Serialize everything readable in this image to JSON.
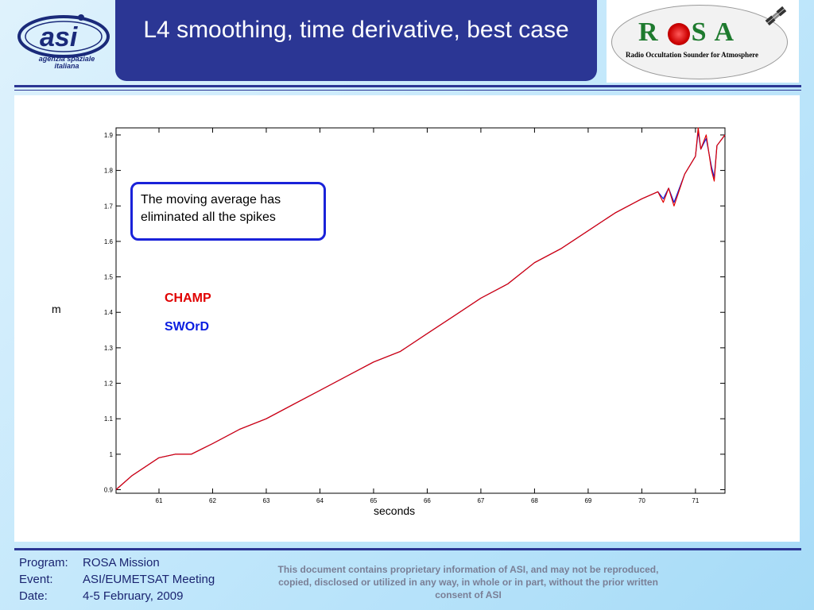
{
  "header": {
    "title": "L4 smoothing, time derivative, best case",
    "asi_logo_text": "agenzia spaziale italiana",
    "rosa_logo_text": "ROSA",
    "rosa_subtitle": "Radio Occultation Sounder for Atmosphere"
  },
  "annotation": {
    "text": "The moving average has eliminated all the spikes"
  },
  "chart_data": {
    "type": "line",
    "title": "",
    "xlabel": "seconds",
    "ylabel": "m",
    "xlim": [
      60.2,
      71.55
    ],
    "ylim": [
      0.89,
      1.92
    ],
    "x_ticks": [
      61,
      62,
      63,
      64,
      65,
      66,
      67,
      68,
      69,
      70,
      71
    ],
    "y_ticks": [
      0.9,
      1,
      1.1,
      1.2,
      1.3,
      1.4,
      1.5,
      1.6,
      1.7,
      1.8,
      1.9
    ],
    "y_tick_labels": [
      "0.9",
      "1",
      "1.1",
      "1.2",
      "1.3",
      "1.4",
      "1.5",
      "1.6",
      "1.7",
      "1.8",
      "1.9"
    ],
    "grid": false,
    "series": [
      {
        "name": "CHAMP",
        "color": "#e00000",
        "x": [
          60.2,
          60.5,
          61.0,
          61.3,
          61.6,
          62.0,
          62.5,
          63.0,
          63.5,
          64.0,
          64.5,
          65.0,
          65.5,
          66.0,
          66.5,
          67.0,
          67.5,
          68.0,
          68.5,
          69.0,
          69.5,
          70.0,
          70.3,
          70.4,
          70.5,
          70.6,
          70.8,
          71.0,
          71.05,
          71.1,
          71.2,
          71.3,
          71.35,
          71.4,
          71.55
        ],
        "y": [
          0.9,
          0.94,
          0.99,
          1.0,
          1.0,
          1.03,
          1.07,
          1.1,
          1.14,
          1.18,
          1.22,
          1.26,
          1.29,
          1.34,
          1.39,
          1.44,
          1.48,
          1.54,
          1.58,
          1.63,
          1.68,
          1.72,
          1.74,
          1.71,
          1.75,
          1.7,
          1.79,
          1.84,
          1.92,
          1.86,
          1.9,
          1.8,
          1.77,
          1.87,
          1.9
        ]
      },
      {
        "name": "SWOrD",
        "color": "#0a1de0",
        "x": [
          60.2,
          60.5,
          61.0,
          61.3,
          61.6,
          62.0,
          62.5,
          63.0,
          63.5,
          64.0,
          64.5,
          65.0,
          65.5,
          66.0,
          66.5,
          67.0,
          67.5,
          68.0,
          68.5,
          69.0,
          69.5,
          70.0,
          70.3,
          70.4,
          70.5,
          70.6,
          70.8,
          71.0,
          71.05,
          71.1,
          71.2,
          71.3,
          71.35,
          71.4,
          71.55
        ],
        "y": [
          0.9,
          0.94,
          0.99,
          1.0,
          1.0,
          1.03,
          1.07,
          1.1,
          1.14,
          1.18,
          1.22,
          1.26,
          1.29,
          1.34,
          1.39,
          1.44,
          1.48,
          1.54,
          1.58,
          1.63,
          1.68,
          1.72,
          1.74,
          1.72,
          1.75,
          1.71,
          1.79,
          1.84,
          1.91,
          1.86,
          1.89,
          1.81,
          1.78,
          1.87,
          1.9
        ]
      }
    ]
  },
  "footer": {
    "program_label": "Program:",
    "program_value": "ROSA Mission",
    "event_label": "Event:",
    "event_value": "ASI/EUMETSAT Meeting",
    "date_label": "Date:",
    "date_value": "4-5 February, 2009",
    "disclaimer": "This document contains proprietary information of ASI, and may not be reproduced, copied, disclosed or utilized in any way, in whole or in part, without the prior written consent of ASI"
  }
}
